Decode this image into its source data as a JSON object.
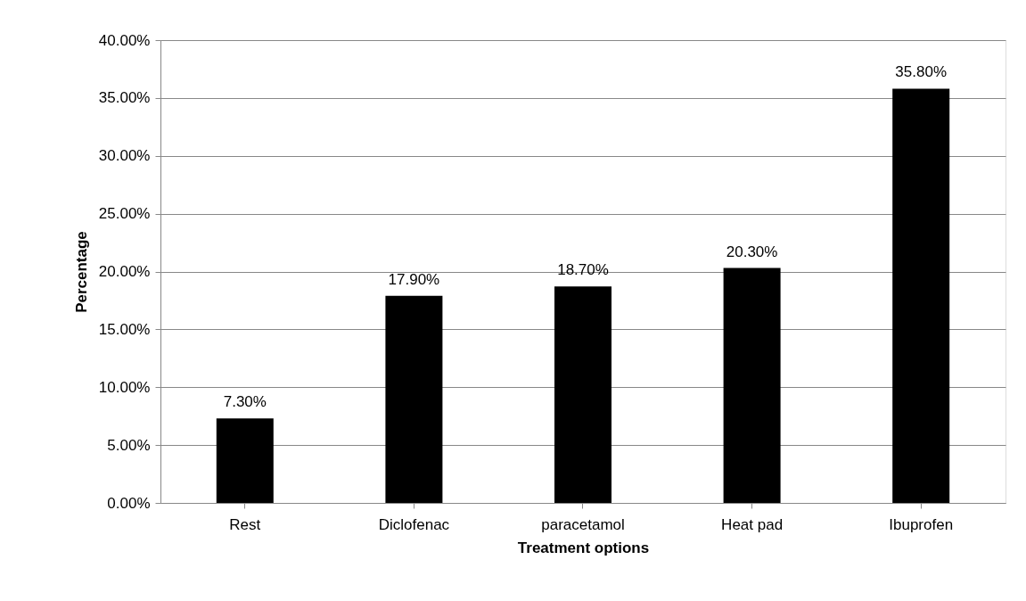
{
  "chart_data": {
    "type": "bar",
    "xlabel": "Treatment options",
    "ylabel": "Percentage",
    "categories": [
      "Rest",
      "Diclofenac",
      "paracetamol",
      "Heat pad",
      "Ibuprofen"
    ],
    "values": [
      7.3,
      17.9,
      18.7,
      20.3,
      35.8
    ],
    "value_labels": [
      "7.30%",
      "17.90%",
      "18.70%",
      "20.30%",
      "35.80%"
    ],
    "color": "#000000",
    "ylim": [
      0,
      40
    ],
    "yticks": [
      {
        "value": 0,
        "label": "0.00%"
      },
      {
        "value": 5,
        "label": "5.00%"
      },
      {
        "value": 10,
        "label": "10.00%"
      },
      {
        "value": 15,
        "label": "15.00%"
      },
      {
        "value": 20,
        "label": "20.00%"
      },
      {
        "value": 25,
        "label": "25.00%"
      },
      {
        "value": 30,
        "label": "30.00%"
      },
      {
        "value": 35,
        "label": "35.00%"
      },
      {
        "value": 40,
        "label": "40.00%"
      }
    ],
    "grid": "y"
  }
}
